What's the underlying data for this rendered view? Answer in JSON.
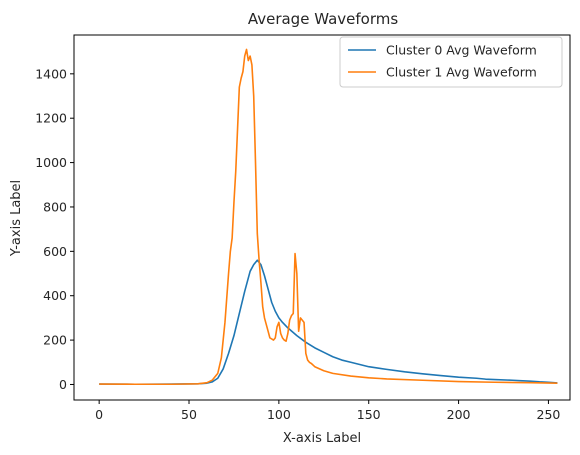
{
  "chart_data": {
    "type": "line",
    "title": "Average Waveforms",
    "xlabel": "X-axis Label",
    "ylabel": "Y-axis Label",
    "xlim": [
      -14,
      262
    ],
    "ylim": [
      -70,
      1575
    ],
    "xticks": [
      0,
      50,
      100,
      150,
      200,
      250
    ],
    "yticks": [
      0,
      200,
      400,
      600,
      800,
      1000,
      1200,
      1400
    ],
    "grid": false,
    "legend_position": "top-right",
    "series": [
      {
        "name": "Cluster 0 Avg Waveform",
        "color": "#1f77b4",
        "x": [
          0,
          20,
          40,
          55,
          60,
          63,
          66,
          69,
          72,
          75,
          78,
          81,
          84,
          86,
          88,
          90,
          92,
          94,
          96,
          98,
          100,
          102,
          105,
          110,
          115,
          120,
          125,
          130,
          135,
          140,
          145,
          150,
          160,
          170,
          180,
          190,
          200,
          210,
          215,
          220,
          230,
          240,
          245,
          250,
          255
        ],
        "y": [
          2,
          1,
          2,
          3,
          6,
          12,
          28,
          70,
          140,
          220,
          320,
          420,
          510,
          540,
          560,
          540,
          490,
          430,
          370,
          330,
          300,
          280,
          255,
          220,
          190,
          165,
          145,
          125,
          110,
          100,
          90,
          80,
          68,
          57,
          48,
          40,
          33,
          28,
          24,
          22,
          19,
          15,
          12,
          10,
          7
        ]
      },
      {
        "name": "Cluster 1 Avg Waveform",
        "color": "#ff7f0e",
        "x": [
          0,
          20,
          40,
          55,
          60,
          63,
          66,
          68,
          70,
          72,
          73,
          74,
          75,
          76,
          77,
          78,
          79,
          80,
          81,
          82,
          83,
          84,
          85,
          86,
          87,
          88,
          89,
          90,
          91,
          92,
          93,
          94,
          95,
          96,
          97,
          98,
          99,
          100,
          101,
          102,
          103,
          104,
          105,
          106,
          107,
          108,
          109,
          110,
          111,
          112,
          113,
          114,
          115,
          116,
          117,
          118,
          120,
          125,
          130,
          140,
          150,
          160,
          180,
          200,
          220,
          240,
          255
        ],
        "y": [
          2,
          1,
          1,
          3,
          8,
          20,
          50,
          120,
          280,
          500,
          600,
          660,
          820,
          960,
          1150,
          1340,
          1380,
          1410,
          1480,
          1510,
          1460,
          1480,
          1440,
          1300,
          1000,
          680,
          560,
          460,
          350,
          300,
          270,
          240,
          210,
          205,
          200,
          210,
          260,
          280,
          230,
          210,
          200,
          195,
          230,
          290,
          310,
          320,
          590,
          500,
          240,
          300,
          290,
          280,
          140,
          110,
          100,
          95,
          80,
          62,
          50,
          38,
          30,
          25,
          19,
          13,
          10,
          8,
          6
        ]
      }
    ]
  }
}
